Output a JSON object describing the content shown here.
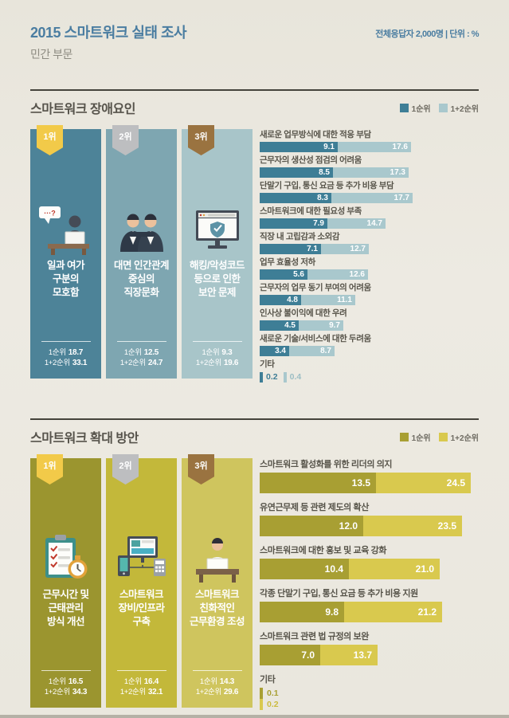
{
  "palette": {
    "blue": "#4a7da1",
    "ink": "#56534b",
    "rule": "#45433b"
  },
  "header": {
    "title": "2015 스마트워크 실태 조사",
    "subtitle": "민간 부문",
    "meta": "전체응답자 2,000명 | 단위 : %"
  },
  "chart_data": [
    {
      "type": "bar",
      "title": "스마트워크 장애요인",
      "legend": [
        "1순위",
        "1+2순위"
      ],
      "legend_position": "top-right",
      "unit": "%",
      "categories": [
        "새로운 업무방식에 대한 적응 부담",
        "근무자의 생산성 점검의 어려움",
        "단말기 구입, 통신 요금 등 추가 비용 부담",
        "스마트워크에 대한 필요성 부족",
        "직장 내 고립감과 소외감",
        "업무 효율성 저하",
        "근무자의 업무 동기 부여의 어려움",
        "인사상 불이익에 대한 우려",
        "새로운 기술/서비스에 대한 두려움",
        "기타"
      ],
      "series": [
        {
          "name": "1순위",
          "values": [
            9.1,
            8.5,
            8.3,
            7.9,
            7.1,
            5.6,
            4.8,
            4.5,
            3.4,
            0.2
          ]
        },
        {
          "name": "1+2순위",
          "values": [
            17.6,
            17.3,
            17.7,
            14.7,
            12.7,
            12.6,
            11.1,
            9.7,
            8.7,
            0.4
          ]
        }
      ],
      "top3": [
        {
          "rank": "1위",
          "label": "일과 여가 구분의 모호함",
          "first": 18.7,
          "first_second": 33.1
        },
        {
          "rank": "2위",
          "label": "대면 인간관계 중심의 직장문화",
          "first": 12.5,
          "first_second": 24.7
        },
        {
          "rank": "3위",
          "label": "해킹/악성코드 등으로 인한 보안 문제",
          "first": 9.3,
          "first_second": 19.6
        }
      ],
      "colors": {
        "first": "#3e7e96",
        "second": "#a9c8cd"
      }
    },
    {
      "type": "bar",
      "title": "스마트워크 확대 방안",
      "legend": [
        "1순위",
        "1+2순위"
      ],
      "legend_position": "top-right",
      "unit": "%",
      "categories": [
        "스마트워크 활성화를 위한 리더의 의지",
        "유연근무제 등 관련 제도의 확산",
        "스마트워크에 대한 홍보 및 교육 강화",
        "각종 단말기 구입, 통신 요금 등 추가 비용 지원",
        "스마트워크 관련 법 규정의 보완",
        "기타"
      ],
      "series": [
        {
          "name": "1순위",
          "values": [
            13.5,
            12.0,
            10.4,
            9.8,
            7.0,
            0.1
          ]
        },
        {
          "name": "1+2순위",
          "values": [
            24.5,
            23.5,
            21.0,
            21.2,
            13.7,
            0.2
          ]
        }
      ],
      "top3": [
        {
          "rank": "1위",
          "label": "근무시간 및 근태관리 방식 개선",
          "first": 16.5,
          "first_second": 34.3
        },
        {
          "rank": "2위",
          "label": "스마트워크 장비/인프라 구축",
          "first": 16.4,
          "first_second": 32.1
        },
        {
          "rank": "3위",
          "label": "스마트워크 친화적인 근무환경 조성",
          "first": 14.3,
          "first_second": 29.6
        }
      ],
      "colors": {
        "first": "#a89f33",
        "second": "#d9c94e"
      }
    }
  ],
  "sections": [
    {
      "title": "스마트워크 장애요인",
      "legend": {
        "first": "1순위",
        "second": "1+2순위"
      },
      "theme": {
        "dark": "#3e7e96",
        "light": "#a9c8cd",
        "lightText": "#9cbec4"
      },
      "cards": [
        {
          "rank": "1위",
          "badge": "#f2ca49",
          "bg": "#4d8398",
          "icon": "confused-worker",
          "lines": [
            "일과 여가",
            "구분의",
            "모호함"
          ],
          "first": "18.7",
          "second": "33.1"
        },
        {
          "rank": "2위",
          "badge": "#bdbec0",
          "bg": "#7ea6b1",
          "icon": "colleagues",
          "lines": [
            "대면 인간관계",
            "중심의",
            "직장문화"
          ],
          "first": "12.5",
          "second": "24.7"
        },
        {
          "rank": "3위",
          "badge": "#9a7340",
          "bg": "#a8c5c9",
          "icon": "security-monitor",
          "lines": [
            "해킹/악성코드",
            "등으로 인한",
            "보안 문제"
          ],
          "first": "9.3",
          "second": "19.6"
        }
      ],
      "bars": [
        {
          "label": "새로운 업무방식에 대한 적응 부담",
          "v1": "9.1",
          "v2": "17.6"
        },
        {
          "label": "근무자의 생산성 점검의 어려움",
          "v1": "8.5",
          "v2": "17.3"
        },
        {
          "label": "단말기 구입, 통신 요금 등 추가 비용 부담",
          "v1": "8.3",
          "v2": "17.7"
        },
        {
          "label": "스마트워크에 대한 필요성 부족",
          "v1": "7.9",
          "v2": "14.7"
        },
        {
          "label": "직장 내 고립감과 소외감",
          "v1": "7.1",
          "v2": "12.7"
        },
        {
          "label": "업무 효율성 저하",
          "v1": "5.6",
          "v2": "12.6"
        },
        {
          "label": "근무자의 업무 동기 부여의 어려움",
          "v1": "4.8",
          "v2": "11.1"
        },
        {
          "label": "인사상 불이익에 대한 우려",
          "v1": "4.5",
          "v2": "9.7"
        },
        {
          "label": "새로운 기술/서비스에 대한 두려움",
          "v1": "3.4",
          "v2": "8.7"
        }
      ],
      "etc": {
        "label": "기타",
        "v1": "0.2",
        "v2": "0.4",
        "layout": "inline"
      }
    },
    {
      "title": "스마트워크 확대 방안",
      "legend": {
        "first": "1순위",
        "second": "1+2순위"
      },
      "theme": {
        "dark": "#a89f33",
        "light": "#d9c94e",
        "lightText": "#cbbb3f"
      },
      "cards": [
        {
          "rank": "1위",
          "badge": "#f2ca49",
          "bg": "#9b952f",
          "icon": "attendance-checklist",
          "lines": [
            "근무시간 및",
            "근태관리",
            "방식 개선"
          ],
          "first": "16.5",
          "second": "34.3"
        },
        {
          "rank": "2위",
          "badge": "#bdbec0",
          "bg": "#c3b83a",
          "icon": "device-infra",
          "lines": [
            "스마트워크",
            "장비/인프라",
            "구축"
          ],
          "first": "16.4",
          "second": "32.1"
        },
        {
          "rank": "3위",
          "badge": "#9a7340",
          "bg": "#cfc55e",
          "icon": "friendly-workspace",
          "lines": [
            "스마트워크",
            "친화적인",
            "근무환경 조성"
          ],
          "first": "14.3",
          "second": "29.6"
        }
      ],
      "bars": [
        {
          "label": "스마트워크 활성화를 위한 리더의 의지",
          "v1": "13.5",
          "v2": "24.5"
        },
        {
          "label": "유연근무제 등 관련 제도의 확산",
          "v1": "12.0",
          "v2": "23.5"
        },
        {
          "label": "스마트워크에 대한 홍보 및 교육 강화",
          "v1": "10.4",
          "v2": "21.0"
        },
        {
          "label": "각종 단말기 구입, 통신 요금 등 추가 비용 지원",
          "v1": "9.8",
          "v2": "21.2"
        },
        {
          "label": "스마트워크 관련 법 규정의 보완",
          "v1": "7.0",
          "v2": "13.7"
        }
      ],
      "etc": {
        "label": "기타",
        "v1": "0.1",
        "v2": "0.2",
        "layout": "stacked"
      }
    }
  ]
}
